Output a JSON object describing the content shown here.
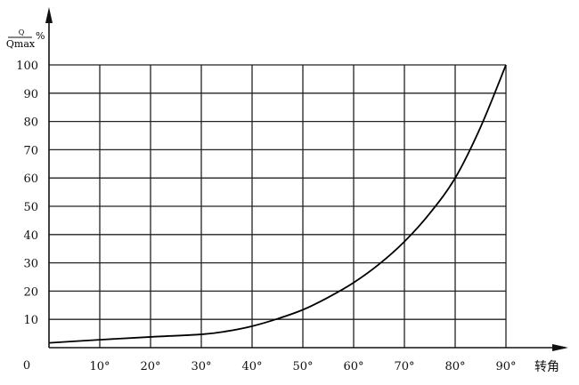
{
  "chart_data": {
    "type": "line",
    "ylabel_numerator": "Q",
    "ylabel_denominator": "Qmax",
    "ylabel_unit": "%",
    "xlabel": "转角",
    "origin_label": "0",
    "xlim": [
      0,
      90
    ],
    "ylim": [
      0,
      100
    ],
    "grid": true,
    "x_ticks": [
      10,
      20,
      30,
      40,
      50,
      60,
      70,
      80,
      90
    ],
    "x_tick_labels": [
      "10°",
      "20°",
      "30°",
      "40°",
      "50°",
      "60°",
      "70°",
      "80°",
      "90°"
    ],
    "y_ticks": [
      10,
      20,
      30,
      40,
      50,
      60,
      70,
      80,
      90,
      100
    ],
    "y_tick_labels": [
      "10",
      "20",
      "30",
      "40",
      "50",
      "60",
      "70",
      "80",
      "90",
      "100"
    ],
    "series": [
      {
        "x": [
          0,
          10,
          20,
          30,
          35,
          40,
          45,
          50,
          55,
          60,
          65,
          70,
          75,
          80,
          85,
          90
        ],
        "y": [
          1.7,
          2.8,
          3.8,
          4.7,
          5.8,
          7.6,
          10.2,
          13.4,
          17.8,
          23,
          29.5,
          37.5,
          47.5,
          60,
          78,
          100
        ]
      }
    ]
  }
}
